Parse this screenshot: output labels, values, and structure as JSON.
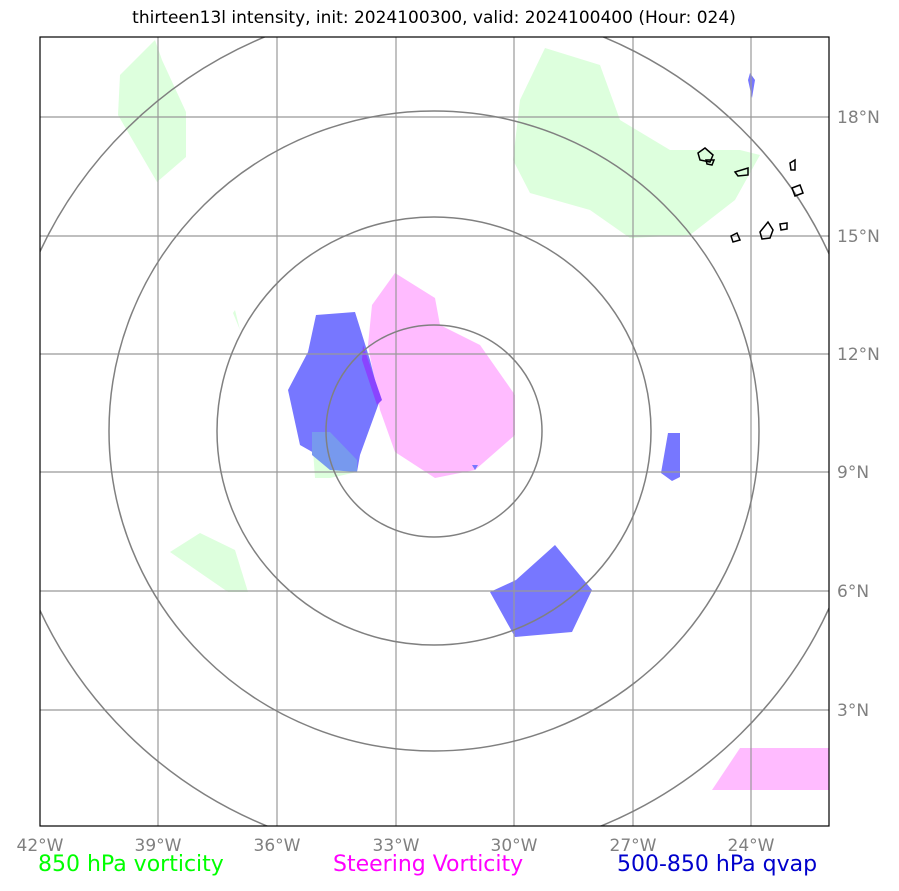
{
  "title": "thirteen13l intensity, init: 2024100300, valid: 2024100400 (Hour: 024)",
  "lon_labels": [
    "42°W",
    "39°W",
    "36°W",
    "33°W",
    "30°W",
    "27°W",
    "24°W"
  ],
  "lat_labels": [
    "18°N",
    "15°N",
    "12°N",
    "9°N",
    "6°N",
    "3°N"
  ],
  "legend": {
    "green": "850 hPa vorticity",
    "magenta": "Steering Vorticity",
    "blue": "500-850 hPa qvap"
  },
  "colors": {
    "green": "#00ff00",
    "magenta": "#ff00ff",
    "blue": "#0000cc",
    "green_fill": "#ddffdd",
    "magenta_fill": "#ffbbff",
    "blue_fill": "#7777ff"
  }
}
